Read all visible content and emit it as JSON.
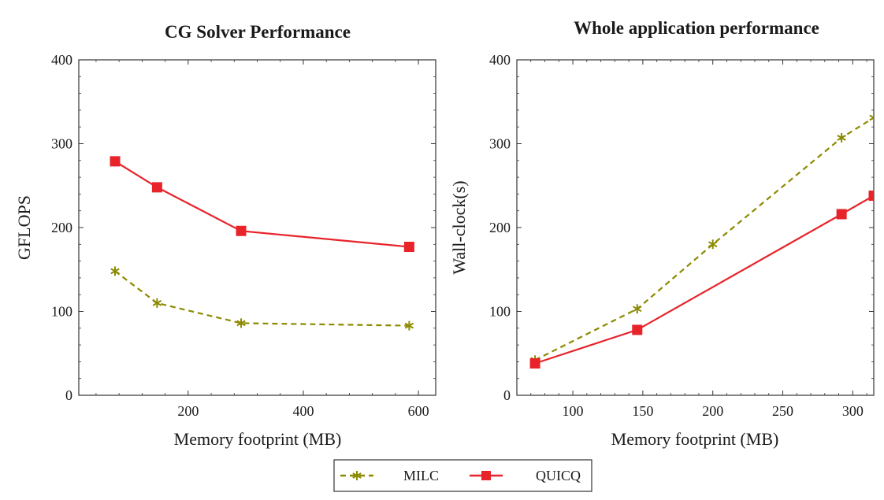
{
  "colors": {
    "milc": "#8c8a00",
    "quicq": "#e8232a",
    "axis": "#333333"
  },
  "chart_data": [
    {
      "type": "line",
      "title": "CG Solver Performance",
      "xlabel": "Memory footprint (MB)",
      "ylabel": "GFLOPS",
      "xlim": [
        10,
        630
      ],
      "ylim": [
        0,
        400
      ],
      "xticks": [
        200,
        400,
        600
      ],
      "yticks": [
        0,
        100,
        200,
        300,
        400
      ],
      "grid": false,
      "series": [
        {
          "name": "MILC",
          "style": "dashed-star",
          "x": [
            73,
            146,
            292,
            584
          ],
          "y": [
            148,
            110,
            86,
            83
          ]
        },
        {
          "name": "QUICQ",
          "style": "solid-square",
          "x": [
            73,
            146,
            292,
            584
          ],
          "y": [
            279,
            248,
            196,
            177
          ]
        }
      ]
    },
    {
      "type": "line",
      "title": "Whole application performance",
      "xlabel": "Memory footprint (MB)",
      "ylabel": "Wall-clock(s)",
      "xlim": [
        60,
        315
      ],
      "ylim": [
        0,
        400
      ],
      "xticks": [
        100,
        150,
        200,
        250,
        300
      ],
      "yticks": [
        0,
        100,
        200,
        300,
        400
      ],
      "grid": false,
      "series": [
        {
          "name": "MILC",
          "style": "dashed-star",
          "x": [
            73,
            146,
            200,
            292,
            315
          ],
          "y": [
            42,
            103,
            180,
            307,
            331
          ]
        },
        {
          "name": "QUICQ",
          "style": "solid-square",
          "x": [
            73,
            146,
            292,
            315
          ],
          "y": [
            38,
            78,
            216,
            238
          ]
        }
      ]
    }
  ],
  "legend": {
    "placement": "bottom-center",
    "items": [
      {
        "label": "MILC",
        "style": "dashed-star"
      },
      {
        "label": "QUICQ",
        "style": "solid-square"
      }
    ]
  }
}
